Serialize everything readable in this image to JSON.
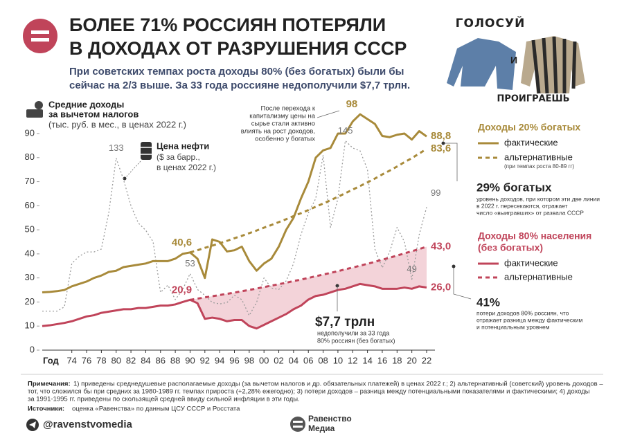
{
  "header": {
    "title": [
      "БОЛЕЕ 71% РОССИЯН ПОТЕРЯЛИ",
      "В ДОХОДАХ ОТ РАЗРУШЕНИЯ СССР"
    ],
    "subtitle": [
      "При советских темпах роста доходы 80% (без богатых) были бы",
      "сейчас на 2/3 выше. За 33 года россияне недополучили $7,7 трлн."
    ]
  },
  "poster": [
    "ГОЛОСУЙ",
    "И",
    "ПРОИГРАЕШЬ"
  ],
  "chart_data": {
    "type": "line",
    "y_title": [
      "Средние доходы",
      "за вычетом налогов"
    ],
    "y_subtitle": "(тыс. руб. в мес., в ценах 2022 г.)",
    "x_label": "Год",
    "oil_units": [
      "($ за барр.,",
      "в ценах 2022 г.)"
    ],
    "x": [
      1970,
      1971,
      1972,
      1973,
      1974,
      1975,
      1976,
      1977,
      1978,
      1979,
      1980,
      1981,
      1982,
      1983,
      1984,
      1985,
      1986,
      1987,
      1988,
      1989,
      1990,
      1991,
      1992,
      1993,
      1994,
      1995,
      1996,
      1997,
      1998,
      1999,
      2000,
      2001,
      2002,
      2003,
      2004,
      2005,
      2006,
      2007,
      2008,
      2009,
      2010,
      2011,
      2012,
      2013,
      2014,
      2015,
      2016,
      2017,
      2018,
      2019,
      2020,
      2021,
      2022
    ],
    "xlim": [
      1970,
      2022
    ],
    "xticks": [
      {
        "value": 1974,
        "label": "74"
      },
      {
        "value": 1976,
        "label": "76"
      },
      {
        "value": 1978,
        "label": "78"
      },
      {
        "value": 1980,
        "label": "80"
      },
      {
        "value": 1982,
        "label": "82"
      },
      {
        "value": 1984,
        "label": "84"
      },
      {
        "value": 1986,
        "label": "86"
      },
      {
        "value": 1988,
        "label": "88"
      },
      {
        "value": 1990,
        "label": "90"
      },
      {
        "value": 1992,
        "label": "92"
      },
      {
        "value": 1994,
        "label": "94"
      },
      {
        "value": 1996,
        "label": "96"
      },
      {
        "value": 1998,
        "label": "98"
      },
      {
        "value": 2000,
        "label": "00"
      },
      {
        "value": 2002,
        "label": "02"
      },
      {
        "value": 2004,
        "label": "04"
      },
      {
        "value": 2006,
        "label": "06"
      },
      {
        "value": 2008,
        "label": "08"
      },
      {
        "value": 2010,
        "label": "10"
      },
      {
        "value": 2012,
        "label": "12"
      },
      {
        "value": 2014,
        "label": "14"
      },
      {
        "value": 2016,
        "label": "16"
      },
      {
        "value": 2018,
        "label": "18"
      },
      {
        "value": 2020,
        "label": "20"
      },
      {
        "value": 2022,
        "label": "22"
      }
    ],
    "ylim": [
      0,
      90
    ],
    "yticks": [
      0,
      10,
      20,
      30,
      40,
      50,
      60,
      70,
      80,
      90
    ],
    "y2lim": [
      0,
      150
    ],
    "shade_color": "#f3d3d9",
    "groups": [
      {
        "title": [
          "Доходы 20% богатых"
        ],
        "note": "(при темпах роста 80-89 гг)"
      },
      {
        "title": [
          "Доходы 80% населения",
          "(без богатых)"
        ]
      }
    ],
    "series": [
      {
        "name": "фактические",
        "color": "#a88a3a",
        "dash": "solid",
        "values": [
          24,
          24.2,
          24.5,
          25,
          26.5,
          27.5,
          28.5,
          30,
          31,
          32.5,
          33,
          34.5,
          35,
          35.5,
          36,
          37,
          37,
          37,
          38,
          40,
          40.6,
          38,
          30,
          46,
          45,
          41,
          41.5,
          43,
          37,
          33,
          36,
          38,
          43,
          50,
          55,
          63,
          70,
          80,
          83,
          84,
          90,
          90,
          95,
          98,
          96,
          94,
          89,
          88.5,
          89.5,
          90,
          87.5,
          91,
          88.8
        ],
        "value_labels": [
          null,
          null,
          null,
          null,
          null,
          null,
          null,
          null,
          null,
          null,
          null,
          null,
          null,
          null,
          null,
          null,
          null,
          null,
          null,
          null,
          "40,6",
          null,
          null,
          null,
          null,
          null,
          null,
          null,
          null,
          null,
          null,
          null,
          null,
          null,
          null,
          null,
          null,
          null,
          null,
          null,
          null,
          null,
          null,
          "98",
          null,
          null,
          null,
          null,
          null,
          null,
          null,
          null,
          "88,8"
        ]
      },
      {
        "name": "альтернативные",
        "color": "#a88a3a",
        "dash": "dashed",
        "values": [
          null,
          null,
          null,
          null,
          null,
          null,
          null,
          null,
          null,
          null,
          null,
          null,
          null,
          null,
          null,
          null,
          null,
          null,
          null,
          null,
          40.6,
          41.5,
          42.5,
          43.4,
          44.4,
          45.4,
          46.5,
          47.5,
          48.6,
          49.7,
          50.9,
          52.0,
          53.2,
          54.4,
          55.7,
          56.9,
          58.2,
          59.6,
          60.9,
          62.3,
          63.7,
          65.2,
          66.7,
          68.2,
          69.7,
          71.3,
          73.0,
          74.6,
          76.3,
          78.1,
          79.8,
          81.7,
          83.6
        ],
        "value_labels": [
          null,
          null,
          null,
          null,
          null,
          null,
          null,
          null,
          null,
          null,
          null,
          null,
          null,
          null,
          null,
          null,
          null,
          null,
          null,
          null,
          null,
          null,
          null,
          null,
          null,
          null,
          null,
          null,
          null,
          null,
          null,
          null,
          null,
          null,
          null,
          null,
          null,
          null,
          null,
          null,
          null,
          null,
          null,
          null,
          null,
          null,
          null,
          null,
          null,
          null,
          null,
          null,
          "83,6"
        ]
      },
      {
        "name": "фактические",
        "color": "#c0445a",
        "dash": "solid",
        "values": [
          10,
          10.3,
          10.8,
          11.3,
          12,
          13,
          14,
          14.5,
          15.5,
          16,
          16.5,
          17,
          17,
          17.5,
          17.5,
          18,
          18.5,
          18.5,
          19,
          20,
          20.9,
          19.5,
          13,
          13.5,
          13,
          12,
          12.5,
          12.5,
          10,
          9,
          10.5,
          12,
          13.5,
          15,
          17,
          18.5,
          21,
          22.5,
          23,
          24,
          25,
          25.5,
          26.5,
          27.5,
          27,
          26.5,
          25.5,
          25.5,
          25.5,
          26,
          25.5,
          26.5,
          26.0
        ],
        "value_labels": [
          null,
          null,
          null,
          null,
          null,
          null,
          null,
          null,
          null,
          null,
          null,
          null,
          null,
          null,
          null,
          null,
          null,
          null,
          null,
          null,
          "20,9",
          null,
          null,
          null,
          null,
          null,
          null,
          null,
          null,
          null,
          null,
          null,
          null,
          null,
          null,
          null,
          null,
          null,
          null,
          null,
          null,
          null,
          null,
          null,
          null,
          null,
          null,
          null,
          null,
          null,
          null,
          null,
          "26,0"
        ]
      },
      {
        "name": "альтернативные",
        "color": "#c0445a",
        "dash": "dashed",
        "values": [
          null,
          null,
          null,
          null,
          null,
          null,
          null,
          null,
          null,
          null,
          null,
          null,
          null,
          null,
          null,
          null,
          null,
          null,
          null,
          null,
          20.9,
          21.4,
          21.9,
          22.4,
          22.9,
          23.4,
          23.9,
          24.5,
          25.0,
          25.6,
          26.2,
          26.8,
          27.4,
          28.0,
          28.7,
          29.3,
          30.0,
          30.7,
          31.4,
          32.1,
          32.8,
          33.6,
          34.3,
          35.1,
          35.9,
          36.7,
          37.6,
          38.4,
          39.3,
          40.2,
          41.1,
          42.0,
          43.0
        ],
        "value_labels": [
          null,
          null,
          null,
          null,
          null,
          null,
          null,
          null,
          null,
          null,
          null,
          null,
          null,
          null,
          null,
          null,
          null,
          null,
          null,
          null,
          null,
          null,
          null,
          null,
          null,
          null,
          null,
          null,
          null,
          null,
          null,
          null,
          null,
          null,
          null,
          null,
          null,
          null,
          null,
          null,
          null,
          null,
          null,
          null,
          null,
          null,
          null,
          null,
          null,
          null,
          null,
          null,
          "43,0"
        ]
      },
      {
        "name": "Цена нефти",
        "color": "#9a9a9a",
        "dash": "dotted",
        "axis": "y2",
        "values": [
          27,
          27,
          27,
          30,
          60,
          65,
          68,
          68,
          70,
          95,
          133,
          118,
          100,
          88,
          83,
          75,
          40,
          45,
          35,
          42,
          53,
          42,
          38,
          33,
          32,
          33,
          38,
          35,
          24,
          33,
          50,
          43,
          42,
          48,
          60,
          80,
          95,
          105,
          135,
          85,
          105,
          145,
          140,
          138,
          125,
          70,
          57,
          68,
          85,
          75,
          49,
          80,
          99
        ],
        "value_labels": [
          null,
          null,
          null,
          null,
          null,
          null,
          null,
          null,
          null,
          null,
          "133",
          null,
          null,
          null,
          null,
          null,
          null,
          null,
          null,
          null,
          "53",
          null,
          null,
          null,
          null,
          null,
          null,
          null,
          null,
          null,
          null,
          null,
          null,
          null,
          null,
          null,
          null,
          null,
          null,
          null,
          null,
          "145",
          null,
          null,
          null,
          null,
          null,
          null,
          null,
          null,
          "49",
          null,
          "99"
        ]
      }
    ],
    "annotations": {
      "capitalism": [
        "После перехода к",
        "капитализму цены на",
        "сырье стали активно",
        "влиять на рост доходов,",
        "особенно у богатых"
      ],
      "rich": {
        "title": "29% богатых",
        "lines": [
          "уровень доходов, при котором эти две линии",
          "в 2022 г. пересекаются, отражает",
          "число «выигравших» от развала СССР"
        ]
      },
      "loss_pct": {
        "title": "41%",
        "lines": [
          "потери доходов 80% россиян, что",
          "отражает разница между фактическим",
          "и потенциальным уровнем"
        ]
      },
      "loss_sum": {
        "title": "$7,7 трлн",
        "lines": [
          "недополучили за 33 года",
          "80% россиян (без богатых)"
        ]
      }
    }
  },
  "notes": {
    "label": "Примечания:",
    "lines": [
      "1) приведены среднедушевые располагаемые доходы (за вычетом налогов и др. обязательных платежей) в ценах 2022 г.; 2) альтернативный (советский) уровень доходов –",
      "тот, что сложился бы при средних за 1980-1989 гг. темпах прироста (+2,28% ежегодно); 3) потери доходов – разница между потенциальными показателями и фактическими; 4)  доходы",
      "за 1991-1995 гг. приведены по скользящей средней ввиду сильной инфляции в эти годы."
    ]
  },
  "sources": {
    "label": "Источники:",
    "text": "оценка «Равенства» по данным ЦСУ СССР и Росстата"
  },
  "footer": {
    "handle": "@ravenstvomedia",
    "brand": [
      "Равенство",
      "Медиа"
    ]
  }
}
